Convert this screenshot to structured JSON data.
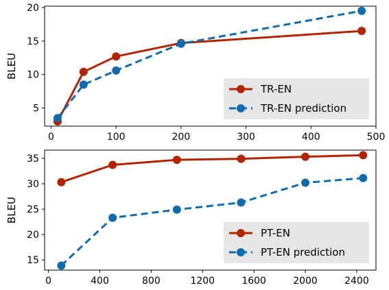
{
  "chart_data": [
    {
      "type": "line",
      "xlabel": "",
      "ylabel": "BLEU",
      "xlim": [
        -10,
        500
      ],
      "ylim": [
        2.3,
        20.2
      ],
      "xticks": [
        0,
        100,
        200,
        300,
        400,
        500
      ],
      "yticks": [
        5,
        10,
        15,
        20
      ],
      "legend_position": "lower-right",
      "series": [
        {
          "name": "TR-EN",
          "color": "#b22400",
          "style": "solid",
          "x": [
            10,
            50,
            100,
            200,
            478
          ],
          "y": [
            3.0,
            10.4,
            12.7,
            14.7,
            16.5
          ]
        },
        {
          "name": "TR-EN prediction",
          "color": "#0e6bb0",
          "style": "dashed",
          "x": [
            10,
            50,
            100,
            200,
            478
          ],
          "y": [
            3.5,
            8.5,
            10.6,
            14.6,
            19.5
          ]
        }
      ]
    },
    {
      "type": "line",
      "xlabel": "",
      "ylabel": "BLEU",
      "xlim": [
        -30,
        2550
      ],
      "ylim": [
        13.0,
        36.6
      ],
      "xticks": [
        0,
        400,
        800,
        1200,
        1600,
        2000,
        2400
      ],
      "yticks": [
        15,
        20,
        25,
        30,
        35
      ],
      "legend_position": "lower-right",
      "series": [
        {
          "name": "PT-EN",
          "color": "#b22400",
          "style": "solid",
          "x": [
            100,
            500,
            1000,
            1500,
            2000,
            2450
          ],
          "y": [
            30.3,
            33.7,
            34.7,
            34.9,
            35.3,
            35.6
          ]
        },
        {
          "name": "PT-EN prediction",
          "color": "#0e6bb0",
          "style": "dashed",
          "x": [
            100,
            500,
            1000,
            1500,
            2000,
            2450
          ],
          "y": [
            13.9,
            23.3,
            24.9,
            26.3,
            30.2,
            31.1
          ]
        }
      ]
    }
  ]
}
